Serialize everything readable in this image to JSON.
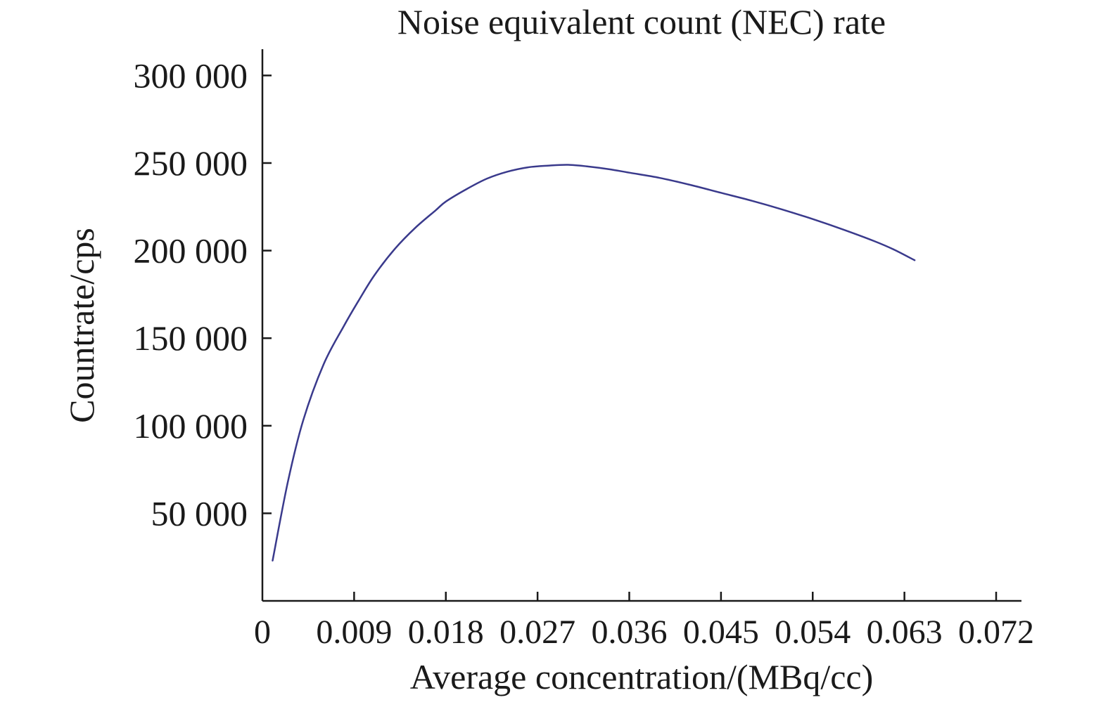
{
  "chart_data": {
    "type": "line",
    "title": "Noise equivalent count (NEC) rate",
    "xlabel": "Average concentration/(MBq/cc)",
    "ylabel": "Countrate/cps",
    "xlim": [
      0,
      0.072
    ],
    "ylim": [
      0,
      315000
    ],
    "x_ticks": [
      0,
      0.009,
      0.018,
      0.027,
      0.036,
      0.045,
      0.054,
      0.063,
      0.072
    ],
    "x_tick_labels": [
      "0",
      "0.009",
      "0.018",
      "0.027",
      "0.036",
      "0.045",
      "0.054",
      "0.063",
      "0.072"
    ],
    "y_ticks": [
      50000,
      100000,
      150000,
      200000,
      250000,
      300000
    ],
    "y_tick_labels": [
      "50 000",
      "100 000",
      "150 000",
      "200 000",
      "250 000",
      "300 000"
    ],
    "grid": false,
    "series": [
      {
        "name": "NEC rate",
        "color": "#3a3a8c",
        "x": [
          0.001,
          0.0025,
          0.004,
          0.006,
          0.008,
          0.0095,
          0.011,
          0.013,
          0.015,
          0.017,
          0.018,
          0.02,
          0.022,
          0.024,
          0.026,
          0.028,
          0.03,
          0.032,
          0.034,
          0.036,
          0.039,
          0.042,
          0.045,
          0.048,
          0.051,
          0.054,
          0.057,
          0.06,
          0.062,
          0.064
        ],
        "values": [
          23000,
          68000,
          103000,
          135000,
          157000,
          172000,
          186000,
          201000,
          213000,
          223000,
          228000,
          235000,
          241000,
          245000,
          247500,
          248500,
          249000,
          248000,
          246500,
          244500,
          241500,
          237500,
          233000,
          228500,
          223500,
          218000,
          212000,
          205500,
          200500,
          194500
        ]
      }
    ]
  }
}
